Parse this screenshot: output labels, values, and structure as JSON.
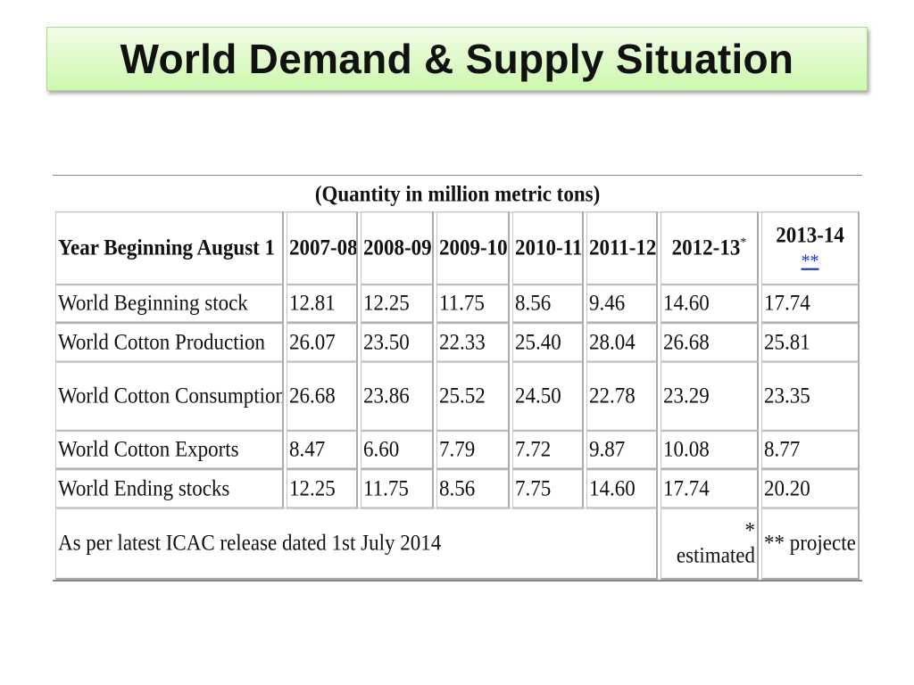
{
  "title": "World Demand & Supply Situation",
  "table": {
    "unit_caption": "(Quantity in million metric tons)",
    "header_label": "Year Beginning August 1",
    "columns": [
      {
        "label": "2007-08",
        "mark": ""
      },
      {
        "label": "2008-09",
        "mark": ""
      },
      {
        "label": "2009-10",
        "mark": ""
      },
      {
        "label": "2010-11",
        "mark": ""
      },
      {
        "label": "2011-12",
        "mark": ""
      },
      {
        "label": "2012-13",
        "mark": "*"
      },
      {
        "label": "2013-14",
        "mark": "**"
      }
    ],
    "rows": [
      {
        "label": "World Beginning stock",
        "values": [
          "12.81",
          "12.25",
          "11.75",
          "8.56",
          "9.46",
          "14.60",
          "17.74"
        ]
      },
      {
        "label": "World Cotton Production",
        "values": [
          "26.07",
          "23.50",
          "22.33",
          "25.40",
          "28.04",
          "26.68",
          "25.81"
        ]
      },
      {
        "label": "World Cotton Consumption",
        "values": [
          "26.68",
          "23.86",
          "25.52",
          "24.50",
          "22.78",
          "23.29",
          "23.35"
        ]
      },
      {
        "label": "World Cotton Exports",
        "values": [
          "8.47",
          "6.60",
          "7.79",
          "7.72",
          "9.87",
          "10.08",
          "8.77"
        ]
      },
      {
        "label": "World Ending stocks",
        "values": [
          "12.25",
          "11.75",
          "8.56",
          "7.75",
          "14.60",
          "17.74",
          "20.20"
        ]
      }
    ],
    "footer": {
      "source": "As per latest ICAC release dated 1st July 2014",
      "note_estimated": "* estimated",
      "note_projected": "** projecte"
    }
  }
}
